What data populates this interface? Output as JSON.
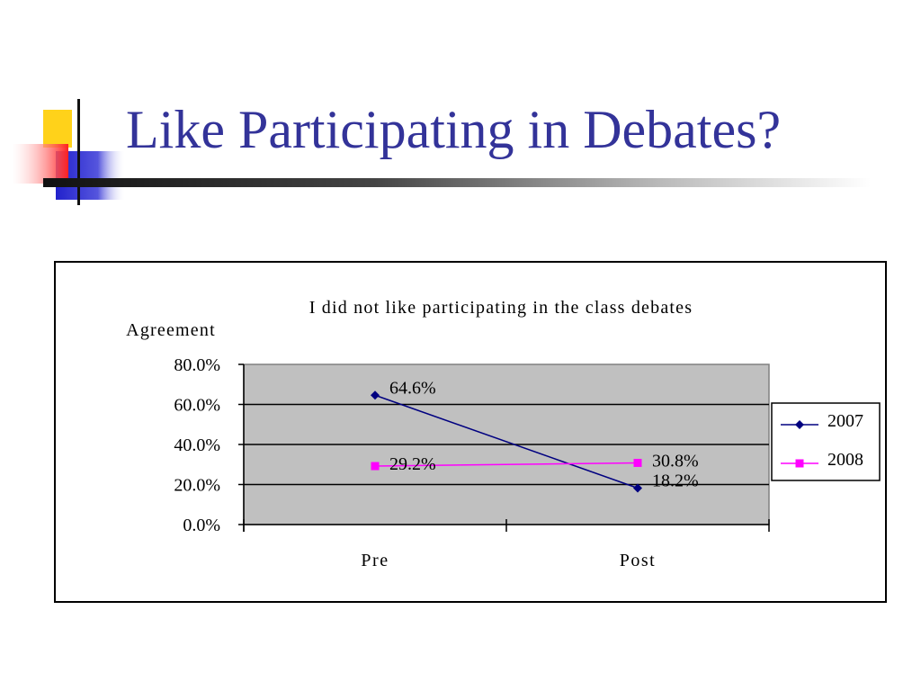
{
  "slide": {
    "title": "Like Participating in Debates?"
  },
  "colors": {
    "title": "#333399",
    "plot_background": "#c0c0c0",
    "series_2007": "#000080",
    "series_2008": "#ff00ff"
  },
  "chart_data": {
    "type": "line",
    "title": "I did not like participating in the class debates",
    "ylabel": "Agreement",
    "xlabel": "",
    "categories": [
      "Pre",
      "Post"
    ],
    "series": [
      {
        "name": "2007",
        "values": [
          64.6,
          18.2
        ],
        "labels": [
          "64.6%",
          "18.2%"
        ],
        "marker": "diamond",
        "color": "#000080"
      },
      {
        "name": "2008",
        "values": [
          29.2,
          30.8
        ],
        "labels": [
          "29.2%",
          "30.8%"
        ],
        "marker": "square",
        "color": "#ff00ff"
      }
    ],
    "ylim": [
      0,
      80
    ],
    "yticks": [
      0,
      20,
      40,
      60,
      80
    ],
    "ytick_labels": [
      "0.0%",
      "20.0%",
      "40.0%",
      "60.0%",
      "80.0%"
    ],
    "grid": true,
    "legend": "right"
  }
}
